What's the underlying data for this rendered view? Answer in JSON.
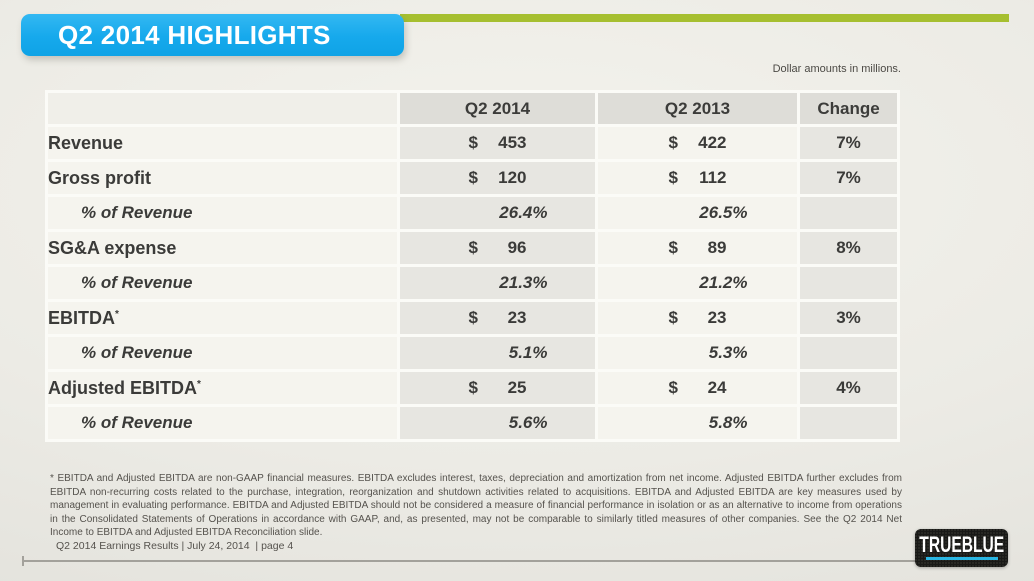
{
  "slide": {
    "title": "Q2 2014 HIGHLIGHTS",
    "units_note": "Dollar amounts in millions.",
    "footnote": "* EBITDA and Adjusted EBITDA are non-GAAP financial measures. EBITDA excludes interest, taxes, depreciation and amortization from net income. Adjusted EBITDA further excludes from EBITDA non-recurring costs related to the purchase, integration, reorganization and shutdown activities related to acquisitions. EBITDA and Adjusted EBITDA are key measures used by management in evaluating performance. EBITDA and Adjusted EBITDA should not be considered a measure of financial performance in isolation or as an alternative to income from operations in the Consolidated Statements of Operations in accordance with GAAP, and, as presented, may not be comparable to similarly titled measures of other companies.  See the Q2 2014 Net Income to EBITDA and Adjusted EBITDA Reconciliation slide.",
    "footer": "Q2 2014 Earnings Results | July 24, 2014  | page 4",
    "logo_text": "TRUEBLUE",
    "colors": {
      "accent_blue": "#1BADEE",
      "accent_green": "#A6BF30",
      "logo_cyan": "#2AB6E3"
    }
  },
  "table": {
    "columns": [
      "",
      "Q2 2014",
      "Q2 2013",
      "Change"
    ],
    "currency_symbol": "$",
    "rows": [
      {
        "label": "Revenue",
        "sup": "",
        "indent": false,
        "type": "currency",
        "q2_2014": "453",
        "q2_2013": "422",
        "change": "7%"
      },
      {
        "label": "Gross profit",
        "sup": "",
        "indent": false,
        "type": "currency",
        "q2_2014": "120",
        "q2_2013": "112",
        "change": "7%"
      },
      {
        "label": "% of Revenue",
        "sup": "",
        "indent": true,
        "type": "percent",
        "q2_2014": "26.4%",
        "q2_2013": "26.5%",
        "change": ""
      },
      {
        "label": "SG&A expense",
        "sup": "",
        "indent": false,
        "type": "currency",
        "q2_2014": "96",
        "q2_2013": "89",
        "change": "8%"
      },
      {
        "label": "% of Revenue",
        "sup": "",
        "indent": true,
        "type": "percent",
        "q2_2014": "21.3%",
        "q2_2013": "21.2%",
        "change": ""
      },
      {
        "label": "EBITDA",
        "sup": "*",
        "indent": false,
        "type": "currency",
        "q2_2014": "23",
        "q2_2013": "23",
        "change": "3%"
      },
      {
        "label": "% of Revenue",
        "sup": "",
        "indent": true,
        "type": "percent",
        "q2_2014": "5.1%",
        "q2_2013": "5.3%",
        "change": ""
      },
      {
        "label": "Adjusted EBITDA",
        "sup": "*",
        "indent": false,
        "type": "currency",
        "q2_2014": "25",
        "q2_2013": "24",
        "change": "4%"
      },
      {
        "label": "% of Revenue",
        "sup": "",
        "indent": true,
        "type": "percent",
        "q2_2014": "5.6%",
        "q2_2013": "5.8%",
        "change": ""
      }
    ]
  }
}
